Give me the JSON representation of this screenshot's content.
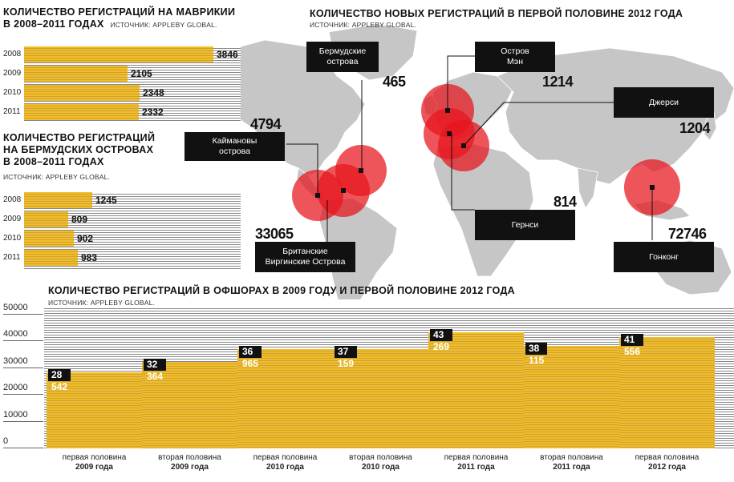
{
  "mauritius": {
    "title_line1": "Количество регистраций на Маврикии",
    "title_line2": "в 2008–2011 годах",
    "source": "ИСТОЧНИК: APPLEBY GLOBAL.",
    "rows": [
      {
        "year": "2008",
        "value": 3846,
        "label": "3846"
      },
      {
        "year": "2009",
        "value": 2105,
        "label": "2105"
      },
      {
        "year": "2010",
        "value": 2348,
        "label": "2348"
      },
      {
        "year": "2011",
        "value": 2332,
        "label": "2332"
      }
    ]
  },
  "bermuda": {
    "title_line1": "Количество регистраций",
    "title_line2": "на Бермудских островах",
    "title_line3": "в 2008–2011 годах",
    "source": "ИСТОЧНИК: APPLEBY GLOBAL.",
    "rows": [
      {
        "year": "2008",
        "value": 1245,
        "label": "1245"
      },
      {
        "year": "2009",
        "value": 809,
        "label": "809"
      },
      {
        "year": "2010",
        "value": 902,
        "label": "902"
      },
      {
        "year": "2011",
        "value": 983,
        "label": "983"
      }
    ]
  },
  "map": {
    "title": "Количество новых регистраций в первой половине 2012 года",
    "source": "ИСТОЧНИК: APPLEBY GLOBAL.",
    "places": [
      {
        "key": "bermuda",
        "name_line1": "Бермудские",
        "name_line2": "острова",
        "value": "465"
      },
      {
        "key": "iom",
        "name_line1": "Остров",
        "name_line2": "Мэн",
        "value": "1214"
      },
      {
        "key": "jersey",
        "name_line1": "Джерси",
        "name_line2": "",
        "value": "1204"
      },
      {
        "key": "cayman",
        "name_line1": "Каймановы",
        "name_line2": "острова",
        "value": "4794"
      },
      {
        "key": "guernsey",
        "name_line1": "Гернси",
        "name_line2": "",
        "value": "814"
      },
      {
        "key": "bvi",
        "name_line1": "Британские",
        "name_line2": "Виргинские Острова",
        "value": "33065"
      },
      {
        "key": "hongkong",
        "name_line1": "Гонконг",
        "name_line2": "",
        "value": "72746"
      }
    ]
  },
  "offshore": {
    "title": "Количество регистраций в офшорах в 2009 году и первой половине 2012 года",
    "source": "ИСТОЧНИК: APPLEBY GLOBAL."
  },
  "chart_data": [
    {
      "type": "bar",
      "orientation": "horizontal",
      "title": "Количество регистраций на Маврикии в 2008–2011 годах",
      "categories": [
        "2008",
        "2009",
        "2010",
        "2011"
      ],
      "values": [
        3846,
        2105,
        2348,
        2332
      ]
    },
    {
      "type": "bar",
      "orientation": "horizontal",
      "title": "Количество регистраций на Бермудских островах в 2008–2011 годах",
      "categories": [
        "2008",
        "2009",
        "2010",
        "2011"
      ],
      "values": [
        1245,
        809,
        902,
        983
      ]
    },
    {
      "type": "bar",
      "title": "Количество регистраций в офшорах в 2009 году и первой половине 2012 года",
      "categories": [
        {
          "period": "первая половина",
          "year": "2009 года"
        },
        {
          "period": "вторая половина",
          "year": "2009 года"
        },
        {
          "period": "первая половина",
          "year": "2010 года"
        },
        {
          "period": "вторая половина",
          "year": "2010 года"
        },
        {
          "period": "первая половина",
          "year": "2011 года"
        },
        {
          "period": "вторая половина",
          "year": "2011 года"
        },
        {
          "period": "первая половина",
          "year": "2012 года"
        }
      ],
      "values": [
        28542,
        32364,
        36965,
        37159,
        43269,
        38115,
        41556
      ],
      "value_labels": [
        "28 542",
        "32 364",
        "36 965",
        "37 159",
        "43 269",
        "38 115",
        "41 556"
      ],
      "yticks": [
        "50000",
        "40000",
        "30000",
        "20000",
        "10000",
        "0"
      ],
      "ylim": [
        0,
        50000
      ]
    }
  ],
  "colors": {
    "bar": "#f3bd2a",
    "circle": "#e8141c",
    "map": "#c7c7c7",
    "label_bg": "#111111"
  }
}
